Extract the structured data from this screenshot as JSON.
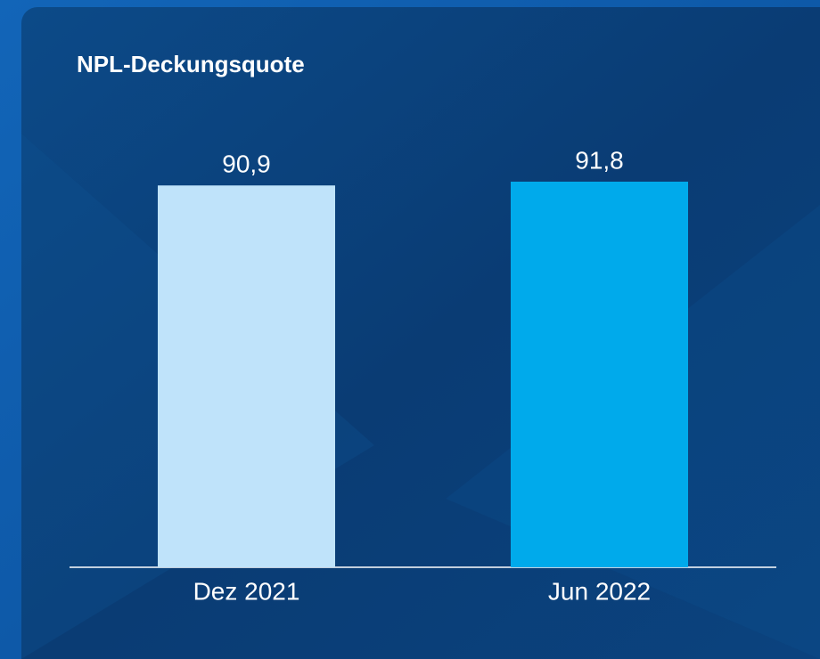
{
  "chart_data": {
    "type": "bar",
    "title": "NPL-Deckungsquote",
    "categories": [
      "Dez 2021",
      "Jun 2022"
    ],
    "values": [
      90.9,
      91.8
    ],
    "value_labels": [
      "90,9",
      "91,8"
    ],
    "colors": [
      "#bfe3fa",
      "#00aaeb"
    ]
  }
}
